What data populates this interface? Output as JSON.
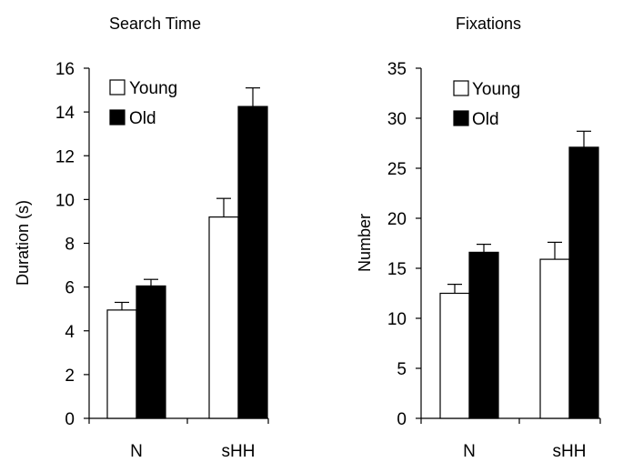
{
  "chart_data": [
    {
      "type": "bar",
      "title": "Search Time",
      "xlabel": "",
      "ylabel": "Duration (s)",
      "ylim": [
        0,
        16
      ],
      "yticks": [
        0,
        2,
        4,
        6,
        8,
        10,
        12,
        14,
        16
      ],
      "categories": [
        "N",
        "sHH"
      ],
      "series": [
        {
          "name": "Young",
          "color": "#ffffff",
          "values": [
            4.95,
            9.2
          ],
          "errors": [
            0.35,
            0.85
          ]
        },
        {
          "name": "Old",
          "color": "#000000",
          "values": [
            6.05,
            14.25
          ],
          "errors": [
            0.3,
            0.85
          ]
        }
      ],
      "error_bars": true,
      "legend": "top-left",
      "grid": false
    },
    {
      "type": "bar",
      "title": "Fixations",
      "xlabel": "",
      "ylabel": "Number",
      "ylim": [
        0,
        35
      ],
      "yticks": [
        0,
        5,
        10,
        15,
        20,
        25,
        30,
        35
      ],
      "categories": [
        "N",
        "sHH"
      ],
      "series": [
        {
          "name": "Young",
          "color": "#ffffff",
          "values": [
            12.5,
            15.9
          ],
          "errors": [
            0.9,
            1.7
          ]
        },
        {
          "name": "Old",
          "color": "#000000",
          "values": [
            16.6,
            27.1
          ],
          "errors": [
            0.8,
            1.6
          ]
        }
      ],
      "error_bars": true,
      "legend": "top-left",
      "grid": false
    }
  ]
}
